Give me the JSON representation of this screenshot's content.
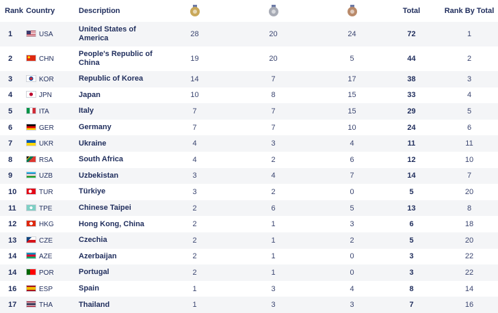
{
  "header": {
    "rank": "Rank",
    "country": "Country",
    "description": "Description",
    "gold_icon": "gold-medal-icon",
    "silver_icon": "silver-medal-icon",
    "bronze_icon": "bronze-medal-icon",
    "total": "Total",
    "rank_by_total": "Rank By Total"
  },
  "colors": {
    "gold": "#c9a85a",
    "silver": "#a7abb5",
    "bronze": "#b98a6a",
    "text": "#1f2d5c",
    "row_alt": "#f4f5f7"
  },
  "rows": [
    {
      "rank": "1",
      "code": "USA",
      "name": "United States of America",
      "gold": "28",
      "silver": "20",
      "bronze": "24",
      "total": "72",
      "rank_by_total": "1"
    },
    {
      "rank": "2",
      "code": "CHN",
      "name": "People's Republic of China",
      "gold": "19",
      "silver": "20",
      "bronze": "5",
      "total": "44",
      "rank_by_total": "2"
    },
    {
      "rank": "3",
      "code": "KOR",
      "name": "Republic of Korea",
      "gold": "14",
      "silver": "7",
      "bronze": "17",
      "total": "38",
      "rank_by_total": "3"
    },
    {
      "rank": "4",
      "code": "JPN",
      "name": "Japan",
      "gold": "10",
      "silver": "8",
      "bronze": "15",
      "total": "33",
      "rank_by_total": "4"
    },
    {
      "rank": "5",
      "code": "ITA",
      "name": "Italy",
      "gold": "7",
      "silver": "7",
      "bronze": "15",
      "total": "29",
      "rank_by_total": "5"
    },
    {
      "rank": "6",
      "code": "GER",
      "name": "Germany",
      "gold": "7",
      "silver": "7",
      "bronze": "10",
      "total": "24",
      "rank_by_total": "6"
    },
    {
      "rank": "7",
      "code": "UKR",
      "name": "Ukraine",
      "gold": "4",
      "silver": "3",
      "bronze": "4",
      "total": "11",
      "rank_by_total": "11"
    },
    {
      "rank": "8",
      "code": "RSA",
      "name": "South Africa",
      "gold": "4",
      "silver": "2",
      "bronze": "6",
      "total": "12",
      "rank_by_total": "10"
    },
    {
      "rank": "9",
      "code": "UZB",
      "name": "Uzbekistan",
      "gold": "3",
      "silver": "4",
      "bronze": "7",
      "total": "14",
      "rank_by_total": "7"
    },
    {
      "rank": "10",
      "code": "TUR",
      "name": "Türkiye",
      "gold": "3",
      "silver": "2",
      "bronze": "0",
      "total": "5",
      "rank_by_total": "20"
    },
    {
      "rank": "11",
      "code": "TPE",
      "name": "Chinese Taipei",
      "gold": "2",
      "silver": "6",
      "bronze": "5",
      "total": "13",
      "rank_by_total": "8"
    },
    {
      "rank": "12",
      "code": "HKG",
      "name": "Hong Kong, China",
      "gold": "2",
      "silver": "1",
      "bronze": "3",
      "total": "6",
      "rank_by_total": "18"
    },
    {
      "rank": "13",
      "code": "CZE",
      "name": "Czechia",
      "gold": "2",
      "silver": "1",
      "bronze": "2",
      "total": "5",
      "rank_by_total": "20"
    },
    {
      "rank": "14",
      "code": "AZE",
      "name": "Azerbaijan",
      "gold": "2",
      "silver": "1",
      "bronze": "0",
      "total": "3",
      "rank_by_total": "22"
    },
    {
      "rank": "14",
      "code": "POR",
      "name": "Portugal",
      "gold": "2",
      "silver": "1",
      "bronze": "0",
      "total": "3",
      "rank_by_total": "22"
    },
    {
      "rank": "16",
      "code": "ESP",
      "name": "Spain",
      "gold": "1",
      "silver": "3",
      "bronze": "4",
      "total": "8",
      "rank_by_total": "14"
    },
    {
      "rank": "17",
      "code": "THA",
      "name": "Thailand",
      "gold": "1",
      "silver": "3",
      "bronze": "3",
      "total": "7",
      "rank_by_total": "16"
    }
  ]
}
